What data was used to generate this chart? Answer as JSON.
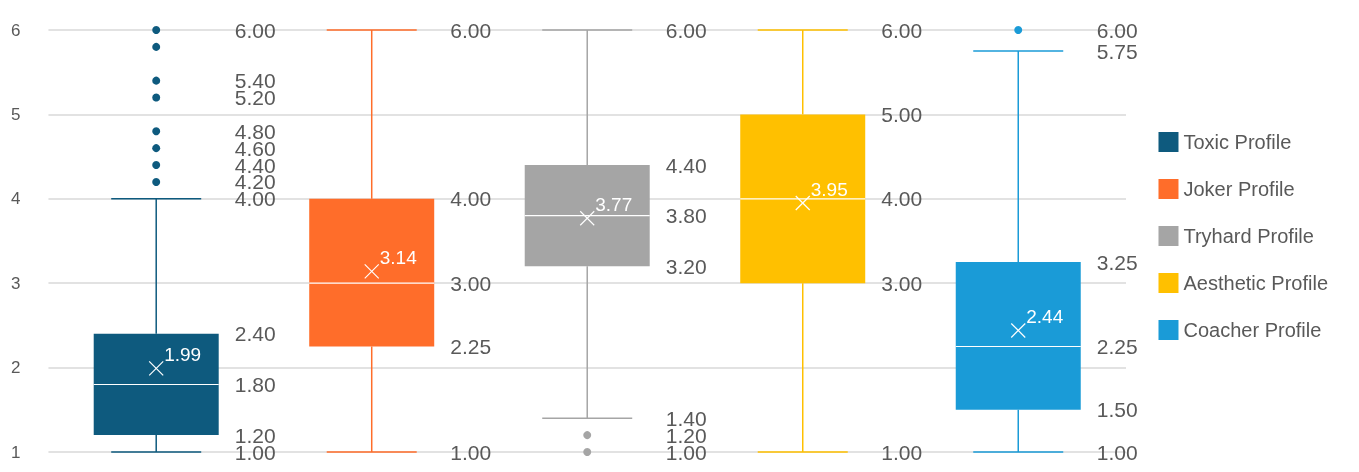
{
  "chart_data": {
    "type": "box",
    "categories": [
      null
    ],
    "ylim": [
      1,
      6
    ],
    "yticks": [
      1,
      2,
      3,
      4,
      5,
      6
    ],
    "grid": "y",
    "legend": "right",
    "tick_labels": "y",
    "series": [
      {
        "name": "Toxic Profile",
        "color": "#0e5a7e",
        "boxes": [
          {
            "low": 1.0,
            "q1": 1.2,
            "median": 1.8,
            "q3": 2.4,
            "high": 4.0,
            "mean": 1.99,
            "outliers": [
              4.2,
              4.4,
              4.6,
              4.8,
              5.2,
              5.4,
              5.8,
              6.0
            ]
          }
        ],
        "value_labels": [
          [
            "1.00",
            "1.20",
            "1.80",
            "2.40",
            "4.00",
            "1.99",
            "4.20",
            "4.40",
            "4.60",
            "4.80",
            "5.20",
            "5.40",
            null,
            "6.00"
          ]
        ]
      },
      {
        "name": "Joker Profile",
        "color": "#ff6d2a",
        "boxes": [
          {
            "low": 1.0,
            "q1": 2.25,
            "median": 3.0,
            "q3": 4.0,
            "high": 6.0,
            "mean": 3.14
          }
        ],
        "value_labels": [
          [
            "1.00",
            "2.25",
            "3.00",
            "4.00",
            "6.00",
            "3.14"
          ]
        ]
      },
      {
        "name": "Tryhard Profile",
        "color": "#a5a5a5",
        "boxes": [
          {
            "low": 1.4,
            "q1": 3.2,
            "median": 3.8,
            "q3": 4.4,
            "high": 6.0,
            "mean": 3.77,
            "outliers": [
              1.0,
              1.2
            ]
          }
        ],
        "value_labels": [
          [
            "1.40",
            "3.20",
            "3.80",
            "4.40",
            "6.00",
            "3.77",
            "1.00",
            "1.20"
          ]
        ]
      },
      {
        "name": "Aesthetic Profile",
        "color": "#ffc000",
        "boxes": [
          {
            "low": 1.0,
            "q1": 3.0,
            "median": 4.0,
            "q3": 5.0,
            "high": 6.0,
            "mean": 3.95
          }
        ],
        "value_labels": [
          [
            "1.00",
            "3.00",
            "4.00",
            "5.00",
            "6.00",
            "3.95"
          ]
        ]
      },
      {
        "name": "Coacher Profile",
        "color": "#1a9bd7",
        "boxes": [
          {
            "low": 1.0,
            "q1": 1.5,
            "median": 2.25,
            "q3": 3.25,
            "high": 5.75,
            "mean": 2.44,
            "outliers": [
              6.0
            ]
          }
        ],
        "value_labels": [
          [
            "1.00",
            "1.50",
            "2.25",
            "3.25",
            "5.75",
            "2.44",
            "6.00"
          ]
        ]
      }
    ]
  }
}
